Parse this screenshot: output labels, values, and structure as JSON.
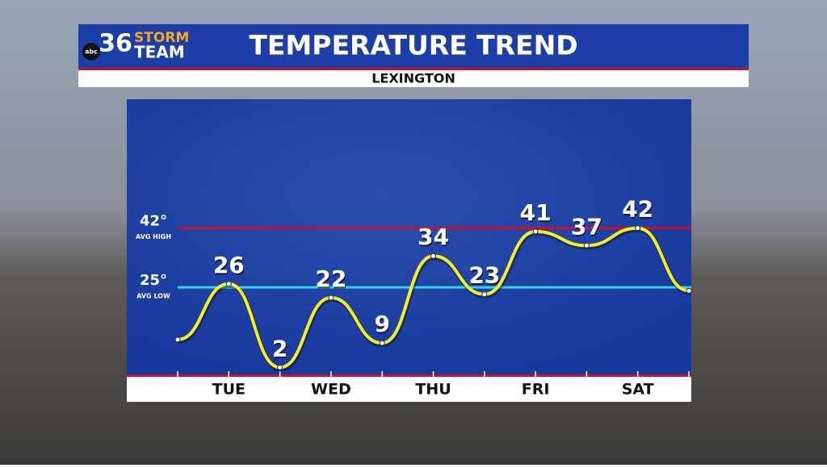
{
  "logo": {
    "network": "abc",
    "number": "36",
    "word1": "STORM",
    "word2": "TEAM"
  },
  "chart_data": {
    "type": "line",
    "title": "TEMPERATURE TREND",
    "subtitle": "LEXINGTON",
    "categories": [
      null,
      "TUE",
      null,
      "WED",
      null,
      "THU",
      null,
      "FRI",
      null,
      "SAT",
      null
    ],
    "values": [
      10,
      26,
      2,
      22,
      9,
      34,
      23,
      41,
      37,
      42,
      24
    ],
    "color": "#f5f01e",
    "ylim": [
      0,
      79
    ],
    "reference_lines": [
      {
        "value": 42,
        "label": "42°",
        "name": "AVG HIGH",
        "color": "#c8102e"
      },
      {
        "value": 25,
        "label": "25°",
        "name": "AVG LOW",
        "color": "#2fd6e8"
      }
    ]
  }
}
